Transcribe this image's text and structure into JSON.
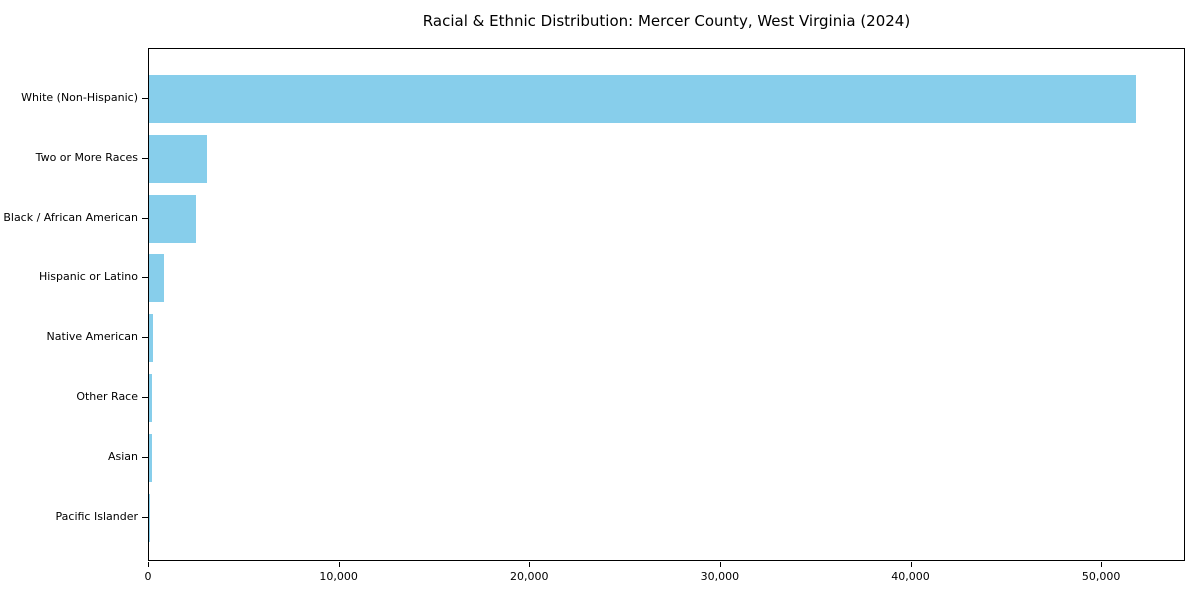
{
  "chart_data": {
    "type": "bar",
    "orientation": "horizontal",
    "title": "Racial & Ethnic Distribution: Mercer County, West Virginia (2024)",
    "xlabel": "",
    "ylabel": "",
    "categories": [
      "White (Non-Hispanic)",
      "Two or More Races",
      "Black / African American",
      "Hispanic or Latino",
      "Native American",
      "Other Race",
      "Asian",
      "Pacific Islander"
    ],
    "values": [
      51860,
      3060,
      2450,
      790,
      210,
      160,
      140,
      25
    ],
    "xlim": [
      0,
      54400
    ],
    "x_ticks": [
      0,
      10000,
      20000,
      30000,
      40000,
      50000
    ],
    "x_tick_labels": [
      "0",
      "10,000",
      "20,000",
      "30,000",
      "40,000",
      "50,000"
    ],
    "bar_color": "#87CEEB",
    "axis_color": "#000000",
    "background_color": "#ffffff",
    "grid": false,
    "legend": null
  }
}
